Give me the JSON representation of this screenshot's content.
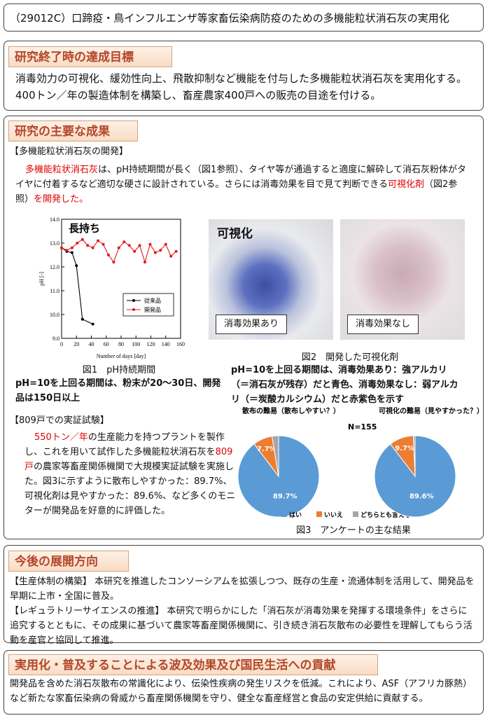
{
  "header": {
    "title": "（29012C）口蹄疫・鳥インフルエンザ等家畜伝染病防疫のための多機能粒状消石灰の実用化"
  },
  "goal": {
    "heading": "研究終了時の達成目標",
    "text": "消毒効力の可視化、緩効性向上、飛散抑制など機能を付与した多機能粒状消石灰を実用化する。400トン／年の製造体制を構築し、畜産農家400戸への販売の目途を付ける。"
  },
  "results": {
    "heading": "研究の主要な成果",
    "development": {
      "heading": "【多機能粒状消石灰の開発】",
      "text": [
        {
          "text": "多機能粒状消石灰",
          "emphasis": true
        },
        {
          "text": "は、pH持続期間が長く（図1参照）、タイヤ等が通過すると適度に解砕して消石灰粉体がタイヤに付着するなど適切な硬さに設計されている。さらには消毒効果を目で見て判断できる"
        },
        {
          "text": "可視化剤",
          "emphasis": true
        },
        {
          "text": "（図2参照）"
        },
        {
          "text": "を開発した。",
          "emphasis": true
        }
      ]
    },
    "figure1": {
      "caption": "図1　pH持続期間",
      "note": "pH=10を上回る期間は、粉末が20～30日、開発品は150日以上"
    },
    "figure2": {
      "photo_title": "可視化",
      "photos": [
        "消毒効果あり",
        "消毒効果なし"
      ],
      "caption": "図2　開発した可視化剤",
      "note": "pH=10を上回る期間は、消毒効果あり：強アルカリ（＝消石灰が残存）だと青色、消毒効果なし：弱アルカリ（＝炭酸カルシウム）だと赤紫色を示す"
    },
    "trial": {
      "heading": "【809戸での実証試験】",
      "text": [
        {
          "text": "550トン／年",
          "emphasis": true
        },
        {
          "text": "の生産能力を持つプラントを製作し、これを用いて試作した多機能粒状消石灰を"
        },
        {
          "text": "809戸",
          "emphasis": true
        },
        {
          "text": "の農家等畜産関係機関で大規模実証試験を実施した。図3に示すように散布しやすかった：89.7%、可視化剤は見やすかった：89.6%、など多くのモニターが開発品を好意的に評価した。"
        }
      ]
    },
    "figure3": {
      "caption": "図3　アンケートの主な結果"
    }
  },
  "outlook": {
    "heading": "今後の展開方向",
    "items": [
      {
        "label": "【生産体制の構築】",
        "text": "本研究を推進したコンソーシアムを拡張しつつ、既存の生産・流通体制を活用して、開発品を早期に上市・全国に普及。"
      },
      {
        "label": "【レギュラトリーサイエンスの推進】",
        "text": "本研究で明らかにした「消石灰が消毒効果を発揮する環境条件」をさらに追究するとともに、その成果に基づいて農家等畜産関係機関に、引き続き消石灰散布の必要性を理解してもらう活動を産官と協同して推進。"
      }
    ]
  },
  "impact": {
    "heading": "実用化・普及することによる波及効果及び国民生活への貢献",
    "text": "開発品を含めた消石灰散布の常識化により、伝染性疾病の発生リスクを低減。これにより、ASF（アフリカ豚熱）など新たな家畜伝染病の脅威から畜産関係機関を守り、健全な畜産経営と食品の安定供給に貢献する。"
  },
  "chart_data": [
    {
      "type": "line",
      "annotation": "長持ち",
      "xlabel": "Number of days [day]",
      "ylabel": "pH [-]",
      "xlim": [
        0,
        160
      ],
      "xticks": [
        0,
        20,
        40,
        60,
        80,
        100,
        120,
        140,
        160
      ],
      "ylim": [
        9,
        14
      ],
      "yticks": [
        {
          "value": 9,
          "label": "9.0"
        },
        {
          "value": 10,
          "label": "10.0"
        },
        {
          "value": 11,
          "label": "11.0"
        },
        {
          "value": 12,
          "label": "12.0"
        },
        {
          "value": 13,
          "label": "13.0"
        },
        {
          "value": 14,
          "label": "14.0"
        }
      ],
      "legend": "lower right",
      "series": [
        {
          "name": "従来品",
          "color": "#000000",
          "x": [
            0,
            7,
            14,
            20,
            28,
            42
          ],
          "values": [
            12.8,
            12.65,
            12.6,
            12.05,
            9.8,
            9.6
          ]
        },
        {
          "name": "開発品",
          "color": "#e41a1c",
          "x": [
            0,
            7,
            14,
            21,
            28,
            35,
            42,
            49,
            56,
            63,
            70,
            77,
            84,
            91,
            98,
            105,
            112,
            119,
            126,
            133,
            140,
            147,
            154
          ],
          "values": [
            12.8,
            12.7,
            12.8,
            13.0,
            13.15,
            12.9,
            12.8,
            13.1,
            12.95,
            12.5,
            12.2,
            12.8,
            13.05,
            12.9,
            12.65,
            12.9,
            12.2,
            12.95,
            12.6,
            12.7,
            12.95,
            12.45,
            12.65
          ]
        }
      ]
    },
    {
      "type": "pie",
      "title": "散布の難易（散布しやすい？）",
      "annotation": "N=155",
      "categories": [
        "はい",
        "いいえ",
        "どちらとも言えない"
      ],
      "colors": [
        "#5b9bd5",
        "#ed7d31",
        "#a5a5a5"
      ],
      "values": [
        89.7,
        7.7,
        2.6
      ],
      "value_labels": [
        "89.7%",
        "7.7%",
        null
      ]
    },
    {
      "type": "pie",
      "title": "可視化の難易（見やすかった？）",
      "values": [
        89.6,
        9.7,
        0.7
      ],
      "value_labels": [
        "89.6%",
        "9.7%",
        null
      ]
    }
  ]
}
